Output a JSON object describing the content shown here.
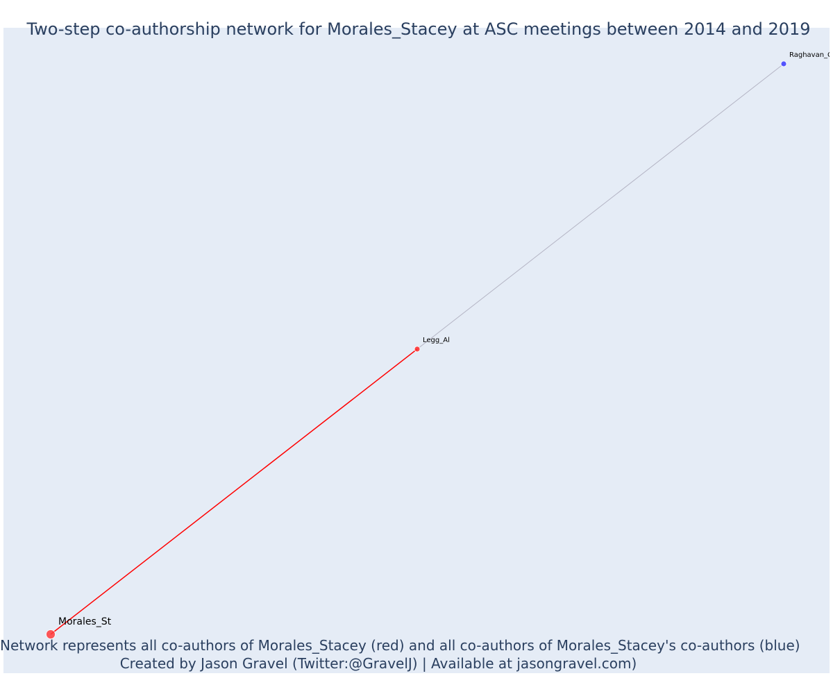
{
  "title": "Two-step co-authorship network for Morales_Stacey at ASC meetings between 2014 and 2019",
  "caption": {
    "line1": "Network represents all co-authors of Morales_Stacey (red) and all co-authors of Morales_Stacey's co-authors (blue)",
    "line2": "Created by Jason Gravel (Twitter:@GravelJ) | Available at jasongravel.com)"
  },
  "colors": {
    "background": "#ffffff",
    "plot_background": "#e5ecf6",
    "title_text": "#2a3f5f",
    "focal_node": "#ff0000",
    "first_step_node": "#ff0000",
    "second_step_node": "#0000ff",
    "first_step_edge": "#ff0000",
    "second_step_edge": "#b4b4c4"
  },
  "chart_data": {
    "type": "network",
    "grid": false,
    "nodes": [
      {
        "id": "Morales_Stacey",
        "label": "Morales_St",
        "group": "focal",
        "color": "#ff3b3b",
        "x": 0.0,
        "y": 0.0
      },
      {
        "id": "Legg_Al",
        "label": "Legg_Al",
        "group": "co-author",
        "color": "#ff2a2a",
        "x": 0.5,
        "y": 0.5
      },
      {
        "id": "Raghavan_C",
        "label": "Raghavan_Cl",
        "group": "co-author-of-co-author",
        "color": "#3b3bff",
        "x": 1.0,
        "y": 1.0
      }
    ],
    "edges": [
      {
        "source": "Morales_Stacey",
        "target": "Legg_Al",
        "color": "#ff0000"
      },
      {
        "source": "Legg_Al",
        "target": "Raghavan_C",
        "color": "#b4b4c4"
      }
    ]
  }
}
